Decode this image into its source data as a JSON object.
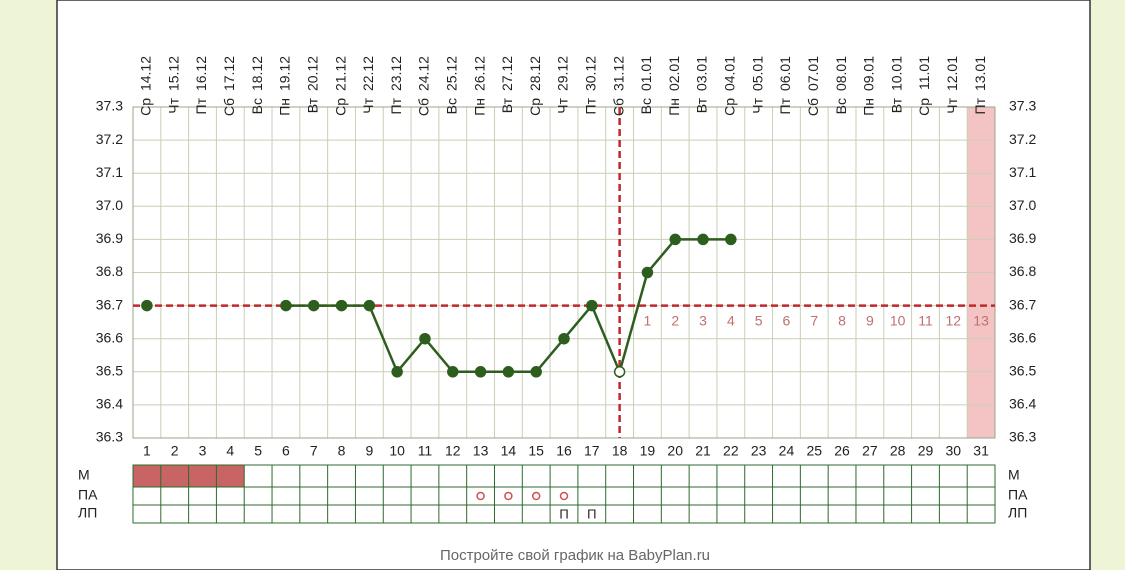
{
  "chart_data": {
    "type": "line",
    "categories": [
      "1",
      "2",
      "3",
      "4",
      "5",
      "6",
      "7",
      "8",
      "9",
      "10",
      "11",
      "12",
      "13",
      "14",
      "15",
      "16",
      "17",
      "18",
      "19",
      "20",
      "21",
      "22",
      "23",
      "24",
      "25",
      "26",
      "27",
      "28",
      "29",
      "30",
      "31"
    ],
    "weekdays": [
      "Ср",
      "Чт",
      "Пт",
      "Сб",
      "Вс",
      "Пн",
      "Вт",
      "Ср",
      "Чт",
      "Пт",
      "Сб",
      "Вс",
      "Пн",
      "Вт",
      "Ср",
      "Чт",
      "Пт",
      "Сб",
      "Вс",
      "Пн",
      "Вт",
      "Ср",
      "Чт",
      "Пт",
      "Сб",
      "Вс",
      "Пн",
      "Вт",
      "Ср",
      "Чт",
      "Пт"
    ],
    "dates": [
      "14.12",
      "15.12",
      "16.12",
      "17.12",
      "18.12",
      "19.12",
      "20.12",
      "21.12",
      "22.12",
      "23.12",
      "24.12",
      "25.12",
      "26.12",
      "27.12",
      "28.12",
      "29.12",
      "30.12",
      "31.12",
      "01.01",
      "02.01",
      "03.01",
      "04.01",
      "05.01",
      "06.01",
      "07.01",
      "08.01",
      "09.01",
      "10.01",
      "11.01",
      "12.01",
      "13.01"
    ],
    "series": [
      {
        "color": "#2d5e1e",
        "values": [
          36.7,
          null,
          null,
          null,
          null,
          36.7,
          36.7,
          36.7,
          36.7,
          36.5,
          36.6,
          36.5,
          36.5,
          36.5,
          36.5,
          36.6,
          36.7,
          36.5,
          36.8,
          36.9,
          36.9,
          36.9,
          null,
          null,
          null,
          null,
          null,
          null,
          null,
          null,
          null
        ]
      }
    ],
    "open_points": [
      18
    ],
    "ylim": [
      36.3,
      37.3
    ],
    "yticks": [
      36.3,
      36.4,
      36.5,
      36.6,
      {
        "value": 36.7,
        "label": "36.7"
      },
      36.8,
      36.9,
      {
        "value": 37,
        "label": "37.0"
      },
      37.1,
      37.2,
      37.3
    ],
    "grid": true,
    "coverline": 36.7,
    "ovulation_day": 18,
    "line_color": "#c0282d",
    "phase_labels": [
      null,
      null,
      null,
      null,
      null,
      null,
      null,
      null,
      null,
      null,
      null,
      null,
      null,
      null,
      null,
      null,
      null,
      null,
      "1",
      "2",
      "3",
      "4",
      "5",
      "6",
      "7",
      "8",
      "9",
      "10",
      "11",
      "12",
      "13"
    ],
    "highlight_days": [
      31
    ],
    "rows": [
      {
        "label": "М",
        "filled_days": [
          1,
          2,
          3,
          4
        ],
        "color": "#c86464"
      },
      {
        "label": "ПА",
        "circle_days": [
          13,
          14,
          15,
          16
        ],
        "color": "#d05050"
      },
      {
        "label": "ЛП",
        "texts": [
          null,
          null,
          null,
          null,
          null,
          null,
          null,
          null,
          null,
          null,
          null,
          null,
          null,
          null,
          null,
          "П",
          "П",
          null,
          null,
          null,
          null,
          null,
          null,
          null,
          null,
          null,
          null,
          null,
          null,
          null,
          null
        ]
      }
    ],
    "footer": "Постройте свой график на BabyPlan.ru"
  }
}
